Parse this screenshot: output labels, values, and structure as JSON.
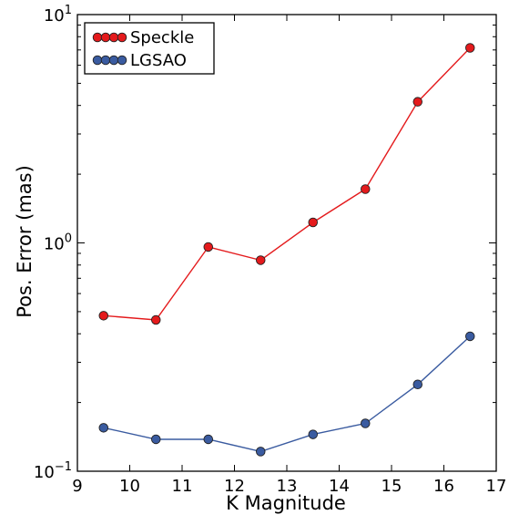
{
  "chart_data": {
    "type": "line",
    "title": "",
    "xlabel": "K Magnitude",
    "ylabel": "Pos. Error (mas)",
    "x": [
      9.5,
      10.5,
      11.5,
      12.5,
      13.5,
      14.5,
      15.5,
      16.5
    ],
    "xlim": [
      9,
      17
    ],
    "ylim": [
      0.1,
      10
    ],
    "yscale": "log",
    "x_ticks": [
      "9",
      "10",
      "11",
      "12",
      "13",
      "14",
      "15",
      "16",
      "17"
    ],
    "y_tick_labels": [
      {
        "value": 0.1,
        "base": "10",
        "exp": "−1"
      },
      {
        "value": 1,
        "base": "10",
        "exp": "0"
      },
      {
        "value": 10,
        "base": "10",
        "exp": "1"
      }
    ],
    "grid": false,
    "legend_position": "top-left",
    "series": [
      {
        "name": "Speckle",
        "color": "#e41a1c",
        "values": [
          0.48,
          0.46,
          0.96,
          0.84,
          1.23,
          1.72,
          4.15,
          7.15
        ]
      },
      {
        "name": "LGSAO",
        "color": "#3a5ba0",
        "values": [
          0.155,
          0.138,
          0.138,
          0.122,
          0.145,
          0.162,
          0.24,
          0.39
        ]
      }
    ]
  }
}
